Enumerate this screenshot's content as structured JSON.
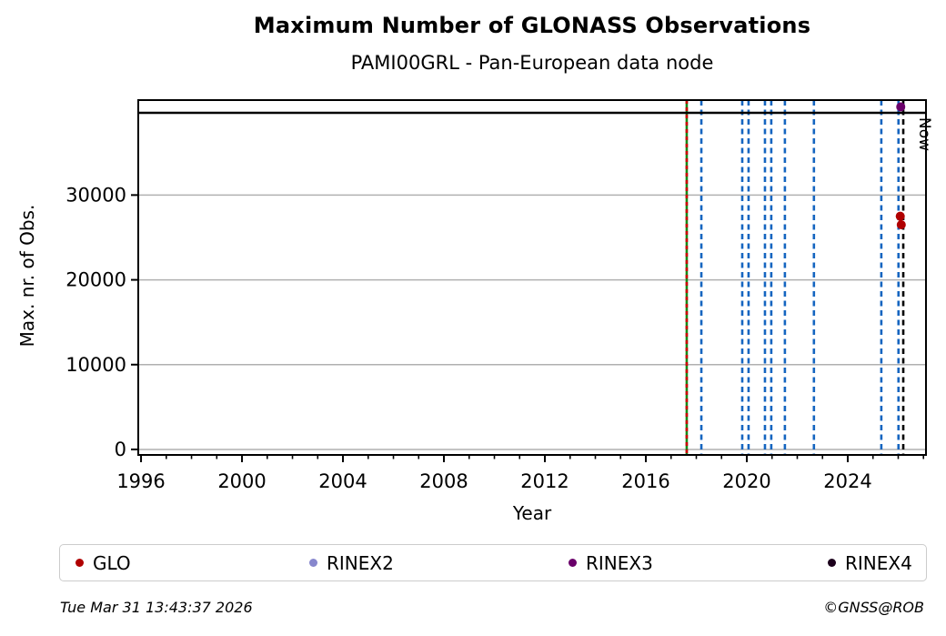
{
  "header": {
    "title": "Maximum Number of GLONASS Observations",
    "subtitle": "PAMI00GRL - Pan-European data node"
  },
  "footer": {
    "timestamp": "Tue Mar 31 13:43:37 2026",
    "credit": "©GNSS@ROB"
  },
  "chart_data": {
    "type": "scatter",
    "title": "Maximum Number of GLONASS Observations",
    "subtitle": "PAMI00GRL - Pan-European data node",
    "xlabel": "Year",
    "ylabel": "Max. nr. of Obs.",
    "xlim": [
      1995.89,
      2027.1
    ],
    "ylim": [
      -650,
      41200
    ],
    "xticks_major": [
      1996,
      2000,
      2004,
      2008,
      2012,
      2016,
      2020,
      2024
    ],
    "xticks_minor_step": 1,
    "yticks": [
      0,
      10000,
      20000,
      30000
    ],
    "grid": "horizontal-only",
    "grid_color": "#b0b0b0",
    "hline": {
      "value": 39700,
      "color": "#000000",
      "style": "solid"
    },
    "vlines": {
      "data_start": {
        "year": 2017.62,
        "line_colors": [
          "#188818",
          "#cc0000"
        ],
        "style": "green-solid-with-red-dashes"
      },
      "blue_dashed_years": [
        2018.2,
        2019.82,
        2020.07,
        2020.72,
        2020.97,
        2021.51,
        2022.66,
        2025.33,
        2026.01
      ],
      "blue": "#1565c0"
    },
    "now_line": {
      "year": 2026.2,
      "label": "Now",
      "color": "#000000",
      "style": "dashed"
    },
    "series": [
      {
        "name": "GLO",
        "color": "#b00000",
        "points": [
          {
            "x": 2026.08,
            "y": 27500
          },
          {
            "x": 2026.12,
            "y": 26500
          }
        ]
      },
      {
        "name": "RINEX2",
        "color": "#8787cd",
        "points": []
      },
      {
        "name": "RINEX3",
        "color": "#6a006a",
        "points": [
          {
            "x": 2026.1,
            "y": 40400
          }
        ]
      },
      {
        "name": "RINEX4",
        "color": "#1c001c",
        "points": []
      }
    ],
    "legend": [
      {
        "label": "GLO",
        "color": "#b00000"
      },
      {
        "label": "RINEX2",
        "color": "#8787cd"
      },
      {
        "label": "RINEX3",
        "color": "#6a006a"
      },
      {
        "label": "RINEX4",
        "color": "#1c001c"
      }
    ],
    "legend_position": "bottom"
  }
}
